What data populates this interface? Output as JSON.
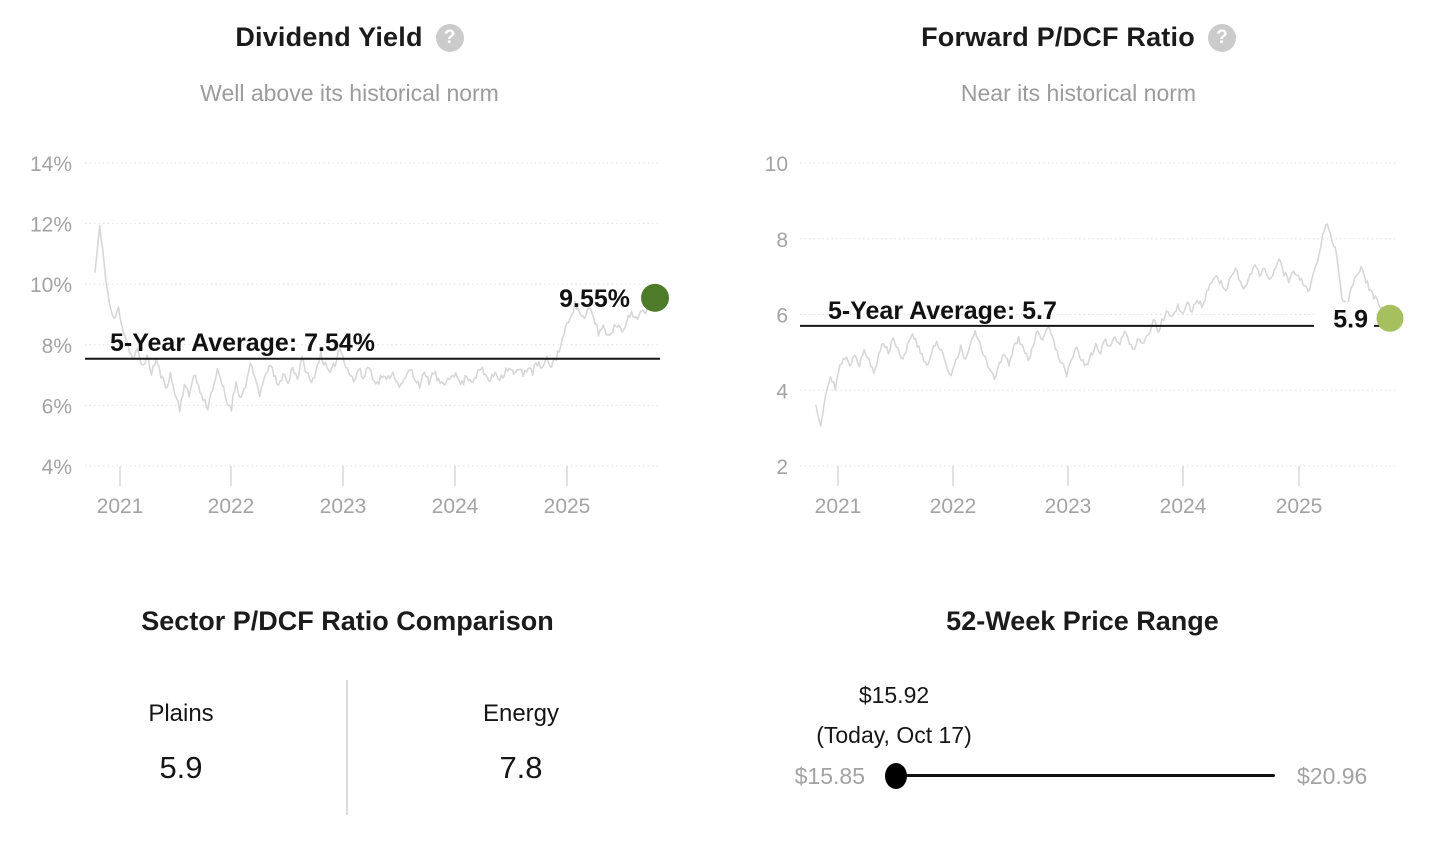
{
  "icons": {
    "help": "?"
  },
  "chart_data": [
    {
      "type": "line",
      "title": "Dividend Yield",
      "subtitle": "Well above its historical norm",
      "help_icon": "question-mark",
      "unit": "%",
      "x_ticks": [
        "2021",
        "2022",
        "2023",
        "2024",
        "2025"
      ],
      "x_tick_values": [
        2021,
        2022,
        2023,
        2024,
        2025
      ],
      "x_start": 2020.79,
      "x_end": 2025.79,
      "y_ticks": [
        "14%",
        "12%",
        "10%",
        "8%",
        "6%",
        "4%"
      ],
      "y_tick_values": [
        14,
        12,
        10,
        8,
        6,
        4
      ],
      "ylim": [
        4,
        14
      ],
      "grid": "dotted-horizontal",
      "legend": "none",
      "line_color": "#d7d7d7",
      "dot_color": "#4e7b29",
      "noise": 0.13,
      "average": {
        "label": "5-Year Average: 7.54%",
        "value": 7.54
      },
      "current": {
        "label": "9.55%",
        "value": 9.55
      },
      "values": [
        10.4,
        11.9,
        10.6,
        9.4,
        8.8,
        9.2,
        8.5,
        8.0,
        7.5,
        7.8,
        7.3,
        7.6,
        7.1,
        7.5,
        7.0,
        6.6,
        7.0,
        6.4,
        5.9,
        6.7,
        6.3,
        7.1,
        6.6,
        6.2,
        5.95,
        6.6,
        7.1,
        6.7,
        6.1,
        5.95,
        6.8,
        6.2,
        6.7,
        7.3,
        6.9,
        6.4,
        6.8,
        7.4,
        7.0,
        6.6,
        7.1,
        6.7,
        7.3,
        6.9,
        7.5,
        7.1,
        6.7,
        7.2,
        7.7,
        7.3,
        7.0,
        7.4,
        7.9,
        7.5,
        7.1,
        6.8,
        7.2,
        6.9,
        7.3,
        7.0,
        6.7,
        7.0,
        6.8,
        7.1,
        6.9,
        6.6,
        6.9,
        7.2,
        6.9,
        6.7,
        7.0,
        6.8,
        7.1,
        6.8,
        6.6,
        6.9,
        7.1,
        6.9,
        6.7,
        7.0,
        6.8,
        7.0,
        7.2,
        7.0,
        6.8,
        7.1,
        6.9,
        7.1,
        7.3,
        7.0,
        7.2,
        7.0,
        7.3,
        7.1,
        7.4,
        7.2,
        7.5,
        7.3,
        7.6,
        8.0,
        8.5,
        9.0,
        9.3,
        9.1,
        8.8,
        9.2,
        8.9,
        8.4,
        8.6,
        8.3,
        8.5,
        8.7,
        8.5,
        8.8,
        9.0,
        8.9,
        9.1,
        9.0,
        9.25,
        9.55
      ]
    },
    {
      "type": "line",
      "title": "Forward P/DCF Ratio",
      "subtitle": "Near its historical norm",
      "help_icon": "question-mark",
      "unit": "",
      "x_ticks": [
        "2021",
        "2022",
        "2023",
        "2024",
        "2025"
      ],
      "x_tick_values": [
        2021,
        2022,
        2023,
        2024,
        2025
      ],
      "x_start": 2020.8,
      "x_end": 2025.8,
      "y_ticks": [
        "10",
        "8",
        "6",
        "4",
        "2"
      ],
      "y_tick_values": [
        10,
        8,
        6,
        4,
        2
      ],
      "ylim": [
        2,
        10
      ],
      "grid": "dotted-horizontal",
      "legend": "none",
      "line_color": "#d7d7d7",
      "dot_color": "#a6c05f",
      "noise": 0.09,
      "average": {
        "label": "5-Year Average: 5.7",
        "value": 5.7
      },
      "current": {
        "label": "5.9",
        "value": 5.9
      },
      "values": [
        3.6,
        3.1,
        3.9,
        4.4,
        4.1,
        4.6,
        4.9,
        4.6,
        5.0,
        4.7,
        5.1,
        4.8,
        4.4,
        4.9,
        5.3,
        5.0,
        5.4,
        5.1,
        4.8,
        5.2,
        5.5,
        5.2,
        4.9,
        4.6,
        5.0,
        5.3,
        5.0,
        4.7,
        4.4,
        4.8,
        5.1,
        4.8,
        5.2,
        5.5,
        5.2,
        4.9,
        4.5,
        4.3,
        4.7,
        5.0,
        4.7,
        5.1,
        5.4,
        5.1,
        4.8,
        5.2,
        5.6,
        5.3,
        5.7,
        5.4,
        5.0,
        4.7,
        4.4,
        4.8,
        5.1,
        4.8,
        4.6,
        4.9,
        5.2,
        5.0,
        5.3,
        5.1,
        5.4,
        5.2,
        5.5,
        5.3,
        5.1,
        5.4,
        5.2,
        5.5,
        5.8,
        5.6,
        5.9,
        6.1,
        5.9,
        6.2,
        6.0,
        6.3,
        6.1,
        6.4,
        6.2,
        6.6,
        6.9,
        7.1,
        6.8,
        6.6,
        7.0,
        7.2,
        6.9,
        6.7,
        7.0,
        7.3,
        7.0,
        7.2,
        6.9,
        7.2,
        7.4,
        7.1,
        6.9,
        7.2,
        7.0,
        6.8,
        6.6,
        7.0,
        7.4,
        8.1,
        8.4,
        8.0,
        7.6,
        6.5,
        6.2,
        6.7,
        7.1,
        7.2,
        6.9,
        6.6,
        6.4,
        6.15,
        6.0,
        5.9
      ]
    }
  ],
  "sector_comparison": {
    "title": "Sector P/DCF Ratio Comparison",
    "columns": [
      {
        "label": "Plains",
        "value": "5.9"
      },
      {
        "label": "Energy",
        "value": "7.8"
      }
    ]
  },
  "price_range": {
    "title": "52-Week Price Range",
    "current_price": "$15.92",
    "current_label": "(Today, Oct 17)",
    "current_value": 15.92,
    "low": "$15.85",
    "low_value": 15.85,
    "high": "$20.96",
    "high_value": 20.96
  }
}
